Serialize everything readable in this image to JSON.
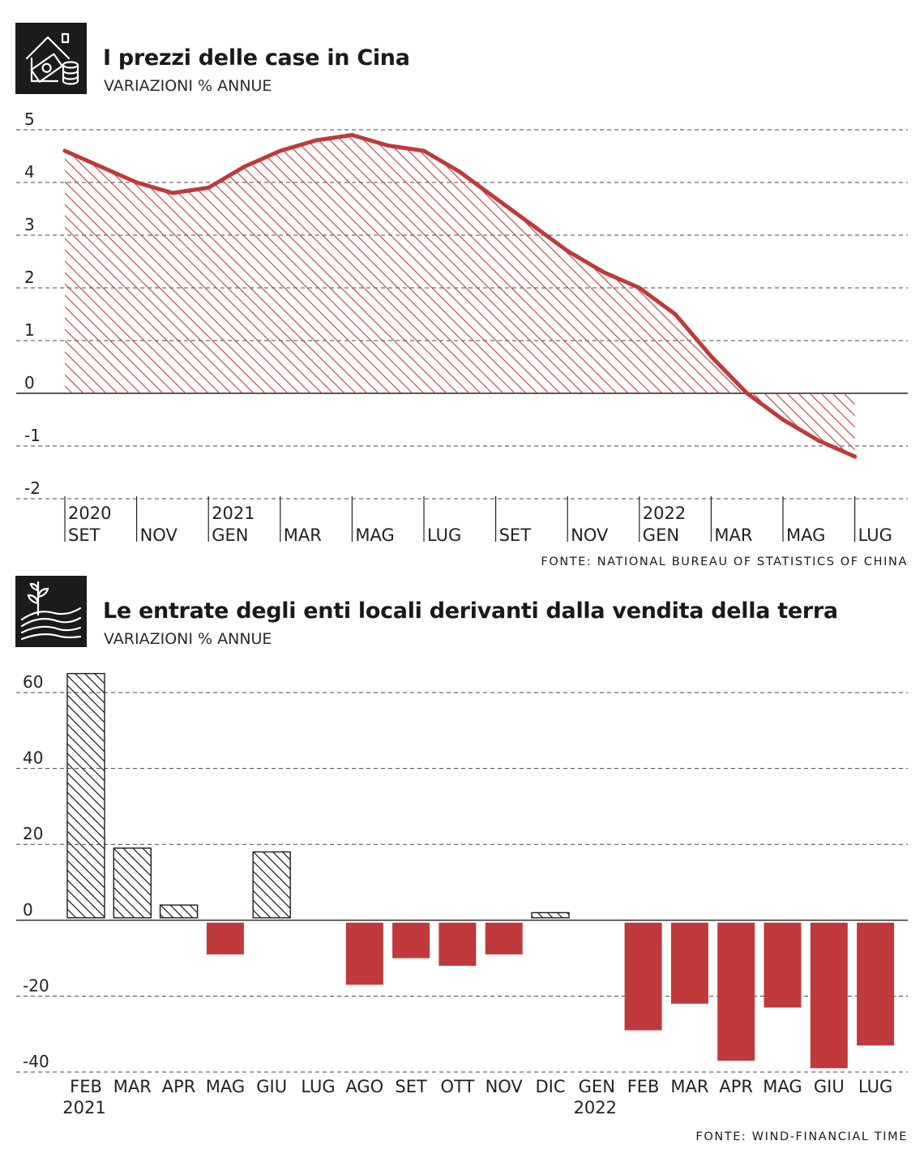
{
  "colors": {
    "accent": "#c0393b",
    "ink": "#1b1b1b",
    "grid": "#444444"
  },
  "chart_data": [
    {
      "type": "area",
      "title": "I prezzi delle case in Cina",
      "subtitle": "VARIAZIONI % ANNUE",
      "source": "FONTE: NATIONAL BUREAU OF STATISTICS OF CHINA",
      "icon": "house-money-icon",
      "ylim": [
        -2,
        5
      ],
      "yticks": [
        5,
        4,
        3,
        2,
        1,
        0,
        -1,
        -2
      ],
      "grid": "dashed horizontal",
      "x_ticks": [
        {
          "month": "SET",
          "year": "2020"
        },
        {
          "month": "NOV",
          "year": ""
        },
        {
          "month": "GEN",
          "year": "2021"
        },
        {
          "month": "MAR",
          "year": ""
        },
        {
          "month": "MAG",
          "year": ""
        },
        {
          "month": "LUG",
          "year": ""
        },
        {
          "month": "SET",
          "year": ""
        },
        {
          "month": "NOV",
          "year": ""
        },
        {
          "month": "GEN",
          "year": "2022"
        },
        {
          "month": "MAR",
          "year": ""
        },
        {
          "month": "MAG",
          "year": ""
        },
        {
          "month": "LUG",
          "year": ""
        }
      ],
      "x": [
        "2020-09",
        "2020-10",
        "2020-11",
        "2020-12",
        "2021-01",
        "2021-02",
        "2021-03",
        "2021-04",
        "2021-05",
        "2021-06",
        "2021-07",
        "2021-08",
        "2021-09",
        "2021-10",
        "2021-11",
        "2021-12",
        "2022-01",
        "2022-02",
        "2022-03",
        "2022-04",
        "2022-05",
        "2022-06",
        "2022-07"
      ],
      "values": [
        4.6,
        4.3,
        4.0,
        3.8,
        3.9,
        4.3,
        4.6,
        4.8,
        4.9,
        4.7,
        4.6,
        4.2,
        3.7,
        3.2,
        2.7,
        2.3,
        2.0,
        1.5,
        0.7,
        0.0,
        -0.5,
        -0.9,
        -1.2
      ]
    },
    {
      "type": "bar",
      "title": "Le entrate degli enti locali derivanti dalla vendita della terra",
      "subtitle": "VARIAZIONI % ANNUE",
      "source": "FONTE: WIND-FINANCIAL TIME",
      "icon": "land-plant-icon",
      "ylim": [
        -40,
        60
      ],
      "yticks": [
        60,
        40,
        20,
        0,
        -20,
        -40
      ],
      "grid": "dashed horizontal",
      "categories": [
        "FEB",
        "MAR",
        "APR",
        "MAG",
        "GIU",
        "LUG",
        "AGO",
        "SET",
        "OTT",
        "NOV",
        "DIC",
        "GEN",
        "FEB",
        "MAR",
        "APR",
        "MAG",
        "GIU",
        "LUG"
      ],
      "year_labels": [
        {
          "index": 0,
          "year": "2021"
        },
        {
          "index": 11,
          "year": "2022"
        }
      ],
      "values": [
        65,
        19,
        4,
        -9,
        18,
        0,
        -17,
        -10,
        -12,
        -9,
        2,
        0,
        -29,
        -22,
        -37,
        -23,
        -39,
        -33
      ]
    }
  ]
}
